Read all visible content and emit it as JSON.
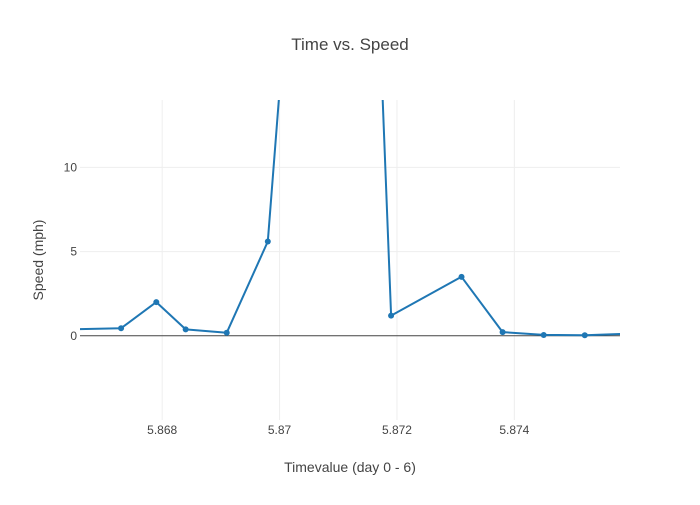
{
  "chart_data": {
    "type": "line",
    "title": "Time vs. Speed",
    "xlabel": "Timevalue (day 0 - 6)",
    "ylabel": "Speed (mph)",
    "xlim": [
      5.8666,
      5.8758
    ],
    "ylim": [
      -5,
      14
    ],
    "x_ticks": [
      5.868,
      5.87,
      5.872,
      5.874
    ],
    "x_tick_labels": [
      "5.868",
      "5.87",
      "5.872",
      "5.874"
    ],
    "y_ticks": [
      0,
      5,
      10
    ],
    "y_tick_labels": [
      "0",
      "5",
      "10"
    ],
    "grid": true,
    "line_color": "#1f77b4",
    "series": [
      {
        "x": [
          5.8655,
          5.8673,
          5.8679,
          5.8684,
          5.8691,
          5.8698,
          5.8703,
          5.8716,
          5.8719,
          5.8731,
          5.8738,
          5.8745,
          5.8752,
          5.8759
        ],
        "y": [
          0.3,
          0.45,
          2.0,
          0.38,
          0.18,
          5.6,
          28,
          28,
          1.2,
          3.5,
          0.22,
          0.05,
          0.03,
          0.12
        ],
        "markers": [
          false,
          true,
          true,
          true,
          true,
          true,
          false,
          false,
          true,
          true,
          true,
          true,
          true,
          true
        ]
      }
    ]
  }
}
